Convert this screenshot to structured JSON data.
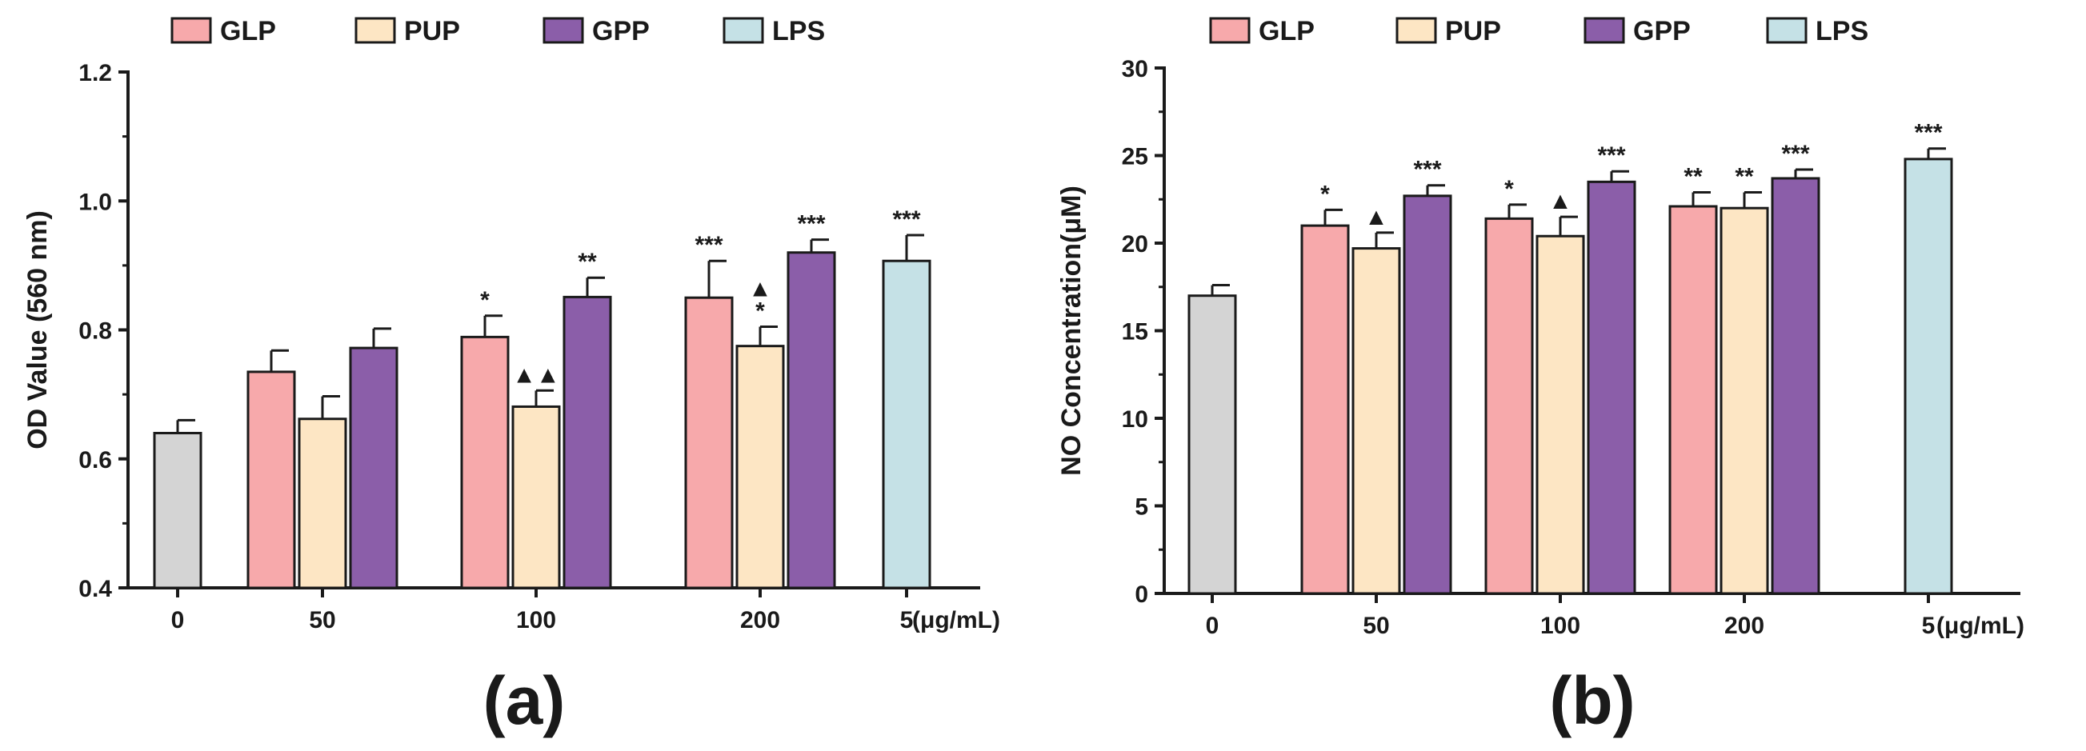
{
  "colors": {
    "GLP": "#f7a9ab",
    "PUP": "#fde6c4",
    "GPP": "#8b5ea9",
    "LPS": "#c5e1e6",
    "control": "#d4d4d4",
    "stroke": "#1a1a1a"
  },
  "chart_data": [
    {
      "type": "bar",
      "panel_label": "(a)",
      "ylabel": "OD Value (560 nm)",
      "xlabel": "",
      "x_unit": "(μg/mL)",
      "ylim": [
        0.4,
        1.2
      ],
      "yticks": [
        "0.4",
        "0.6",
        "0.8",
        "1.0",
        "1.2"
      ],
      "legend": [
        "GLP",
        "PUP",
        "GPP",
        "LPS"
      ],
      "legend_position": "top",
      "groups": [
        {
          "label": "0",
          "bars": [
            {
              "series": "control",
              "value": 0.64,
              "err": 0.02,
              "sig": ""
            }
          ]
        },
        {
          "label": "50",
          "bars": [
            {
              "series": "GLP",
              "value": 0.735,
              "err": 0.033,
              "sig": ""
            },
            {
              "series": "PUP",
              "value": 0.662,
              "err": 0.035,
              "sig": ""
            },
            {
              "series": "GPP",
              "value": 0.772,
              "err": 0.03,
              "sig": ""
            }
          ]
        },
        {
          "label": "100",
          "bars": [
            {
              "series": "GLP",
              "value": 0.789,
              "err": 0.033,
              "sig": "*"
            },
            {
              "series": "PUP",
              "value": 0.681,
              "err": 0.025,
              "sig": "▲▲"
            },
            {
              "series": "GPP",
              "value": 0.851,
              "err": 0.03,
              "sig": "**"
            }
          ]
        },
        {
          "label": "200",
          "bars": [
            {
              "series": "GLP",
              "value": 0.85,
              "err": 0.057,
              "sig": "***"
            },
            {
              "series": "PUP",
              "value": 0.775,
              "err": 0.03,
              "sig": "*",
              "sig2": "▲"
            },
            {
              "series": "GPP",
              "value": 0.92,
              "err": 0.02,
              "sig": "***"
            }
          ]
        },
        {
          "label": "5",
          "bars": [
            {
              "series": "LPS",
              "value": 0.907,
              "err": 0.04,
              "sig": "***"
            }
          ]
        }
      ]
    },
    {
      "type": "bar",
      "panel_label": "(b)",
      "ylabel": "NO Concentration(μM)",
      "xlabel": "",
      "x_unit": "(μg/mL)",
      "ylim": [
        0,
        30
      ],
      "yticks": [
        "0",
        "5",
        "10",
        "15",
        "20",
        "25",
        "30"
      ],
      "legend": [
        "GLP",
        "PUP",
        "GPP",
        "LPS"
      ],
      "legend_position": "top",
      "groups": [
        {
          "label": "0",
          "bars": [
            {
              "series": "control",
              "value": 17.0,
              "err": 0.6,
              "sig": ""
            }
          ]
        },
        {
          "label": "50",
          "bars": [
            {
              "series": "GLP",
              "value": 21.0,
              "err": 0.9,
              "sig": "*"
            },
            {
              "series": "PUP",
              "value": 19.7,
              "err": 0.9,
              "sig": "▲"
            },
            {
              "series": "GPP",
              "value": 22.7,
              "err": 0.6,
              "sig": "***"
            }
          ]
        },
        {
          "label": "100",
          "bars": [
            {
              "series": "GLP",
              "value": 21.4,
              "err": 0.8,
              "sig": "*"
            },
            {
              "series": "PUP",
              "value": 20.4,
              "err": 1.1,
              "sig": "▲"
            },
            {
              "series": "GPP",
              "value": 23.5,
              "err": 0.6,
              "sig": "***"
            }
          ]
        },
        {
          "label": "200",
          "bars": [
            {
              "series": "GLP",
              "value": 22.1,
              "err": 0.8,
              "sig": "**"
            },
            {
              "series": "PUP",
              "value": 22.0,
              "err": 0.9,
              "sig": "**"
            },
            {
              "series": "GPP",
              "value": 23.7,
              "err": 0.5,
              "sig": "***"
            }
          ]
        },
        {
          "label": "5",
          "bars": [
            {
              "series": "LPS",
              "value": 24.8,
              "err": 0.6,
              "sig": "***"
            }
          ]
        }
      ]
    }
  ]
}
